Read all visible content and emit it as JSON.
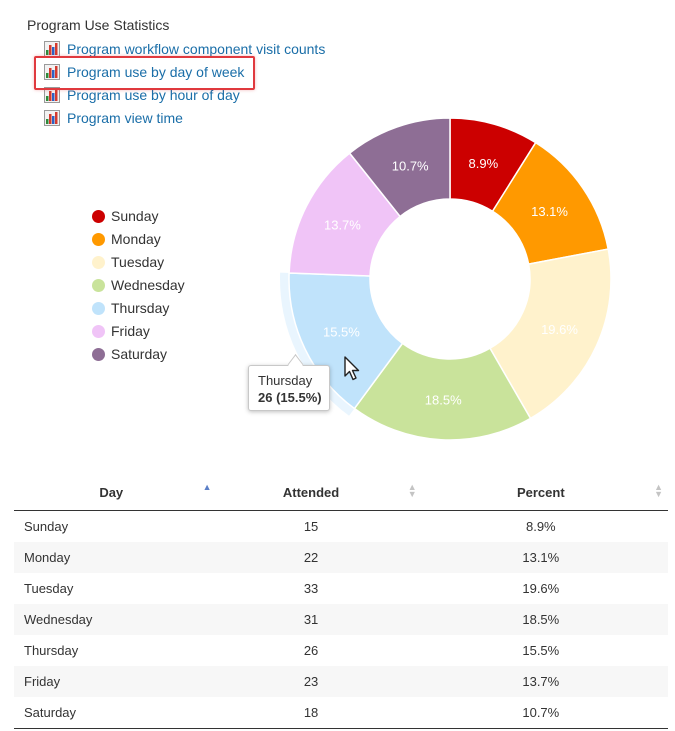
{
  "section": {
    "title": "Program Use Statistics"
  },
  "links": [
    {
      "label": "Program workflow component visit counts",
      "icon": "bar-chart-icon"
    },
    {
      "label": "Program use by day of week",
      "icon": "bar-chart-icon",
      "selected": true
    },
    {
      "label": "Program use by hour of day",
      "icon": "bar-chart-icon"
    },
    {
      "label": "Program view time",
      "icon": "bar-chart-icon"
    }
  ],
  "chart_data": {
    "type": "pie",
    "variant": "donut",
    "categories": [
      "Sunday",
      "Monday",
      "Tuesday",
      "Wednesday",
      "Thursday",
      "Friday",
      "Saturday"
    ],
    "values": [
      15,
      22,
      33,
      31,
      26,
      23,
      18
    ],
    "labels": [
      "8.9%",
      "13.1%",
      "19.6%",
      "18.5%",
      "15.5%",
      "13.7%",
      "10.7%"
    ],
    "colors": [
      "#cc0000",
      "#ff9900",
      "#fff2cc",
      "#c9e39b",
      "#c0e3fb",
      "#f0c4f7",
      "#8e6e95"
    ],
    "label_colors": [
      "#ffffff",
      "#ffffff",
      "#ffffff",
      "#ffffff",
      "#ffffff",
      "#ffffff",
      "#ffffff"
    ],
    "legend_position": "left",
    "hovered_index": 4,
    "tooltip": {
      "title": "Thursday",
      "value": "26 (15.5%)"
    }
  },
  "table": {
    "columns": [
      {
        "label": "Day",
        "sort": "asc"
      },
      {
        "label": "Attended",
        "sort": "none"
      },
      {
        "label": "Percent",
        "sort": "none"
      }
    ],
    "rows": [
      {
        "day": "Sunday",
        "attended": "15",
        "percent": "8.9%"
      },
      {
        "day": "Monday",
        "attended": "22",
        "percent": "13.1%"
      },
      {
        "day": "Tuesday",
        "attended": "33",
        "percent": "19.6%"
      },
      {
        "day": "Wednesday",
        "attended": "31",
        "percent": "18.5%"
      },
      {
        "day": "Thursday",
        "attended": "26",
        "percent": "15.5%"
      },
      {
        "day": "Friday",
        "attended": "23",
        "percent": "13.7%"
      },
      {
        "day": "Saturday",
        "attended": "18",
        "percent": "10.7%"
      }
    ]
  }
}
